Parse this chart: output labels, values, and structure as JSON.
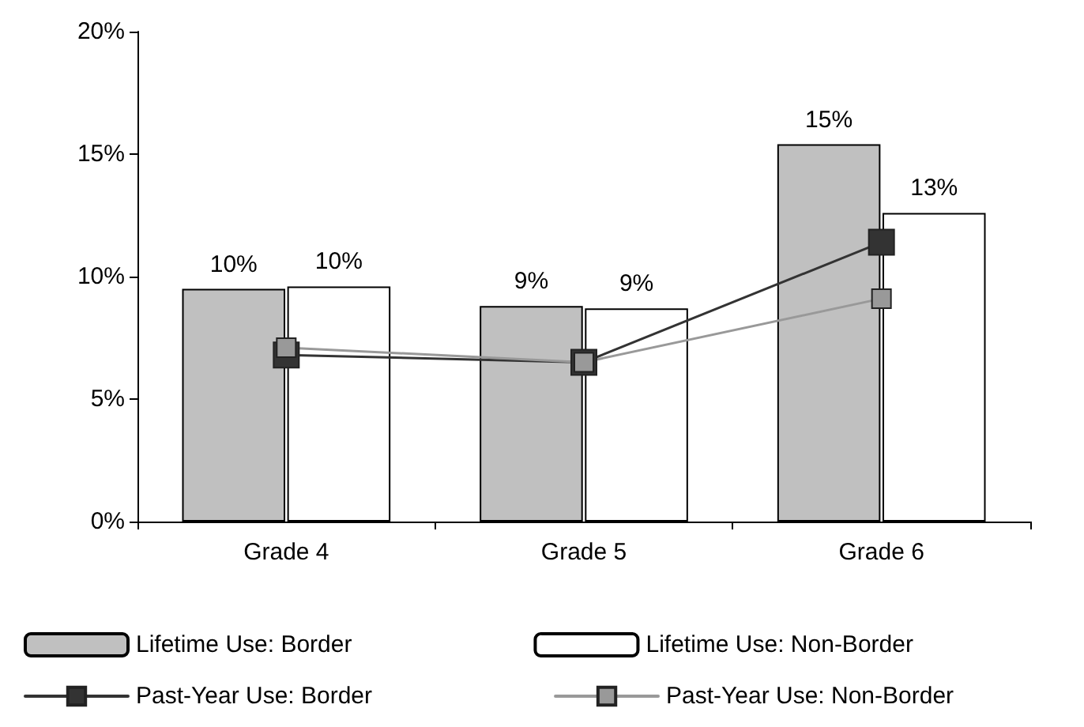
{
  "chart_data": {
    "type": "bar",
    "categories": [
      "Grade 4",
      "Grade 5",
      "Grade 6"
    ],
    "series": [
      {
        "name": "Lifetime Use: Border",
        "color": "#c0c0c0",
        "values": [
          9.5,
          8.8,
          15.4
        ],
        "value_labels": [
          "10%",
          "9%",
          "15%"
        ]
      },
      {
        "name": "Lifetime Use: Non-Border",
        "color": "#ffffff",
        "values": [
          9.6,
          8.7,
          12.6
        ],
        "value_labels": [
          "10%",
          "9%",
          "13%"
        ]
      },
      {
        "name": "Past-Year Use: Border",
        "type": "line",
        "color": "#333333",
        "values": [
          6.8,
          6.5,
          11.4
        ]
      },
      {
        "name": "Past-Year Use: Non-Border",
        "type": "line",
        "color": "#999999",
        "values": [
          7.1,
          6.5,
          9.1
        ]
      }
    ],
    "ylim": [
      0,
      20
    ],
    "yticks": [
      {
        "value": 0,
        "label": "0%"
      },
      {
        "value": 5,
        "label": "5%"
      },
      {
        "value": 10,
        "label": "10%"
      },
      {
        "value": 15,
        "label": "15%"
      },
      {
        "value": 20,
        "label": "20%"
      }
    ],
    "grid": false,
    "legend": "bottom",
    "marker": "square",
    "line_style": "solid"
  }
}
